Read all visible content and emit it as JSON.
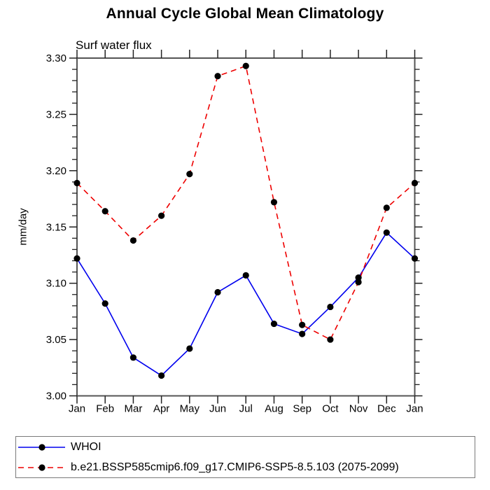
{
  "title": "Annual Cycle Global Mean Climatology",
  "subtitle": "Surf water flux",
  "ylabel": "mm/day",
  "chart_data": {
    "type": "line",
    "categories": [
      "Jan",
      "Feb",
      "Mar",
      "Apr",
      "May",
      "Jun",
      "Jul",
      "Aug",
      "Sep",
      "Oct",
      "Nov",
      "Dec",
      "Jan"
    ],
    "series": [
      {
        "name": "WHOI",
        "color": "#0000ee",
        "line_style": "solid",
        "marker": "black-dot",
        "values": [
          3.122,
          3.082,
          3.034,
          3.018,
          3.042,
          3.092,
          3.107,
          3.064,
          3.055,
          3.079,
          3.105,
          3.145,
          3.122
        ]
      },
      {
        "name": "b.e21.BSSP585cmip6.f09_g17.CMIP6-SSP5-8.5.103 (2075-2099)",
        "color": "#ee0000",
        "line_style": "dashed",
        "marker": "black-dot",
        "values": [
          3.189,
          3.164,
          3.138,
          3.16,
          3.197,
          3.284,
          3.293,
          3.172,
          3.063,
          3.05,
          3.101,
          3.167,
          3.189
        ]
      }
    ],
    "ylim": [
      3.0,
      3.3
    ],
    "ytick_major_step": 0.05,
    "ytick_minor_step": 0.01,
    "ytick_label_format": "2dp",
    "grid": false,
    "tick_direction": "out",
    "legend_position": "bottom-left",
    "axis_color": "#555555",
    "marker_color": "#000000"
  }
}
